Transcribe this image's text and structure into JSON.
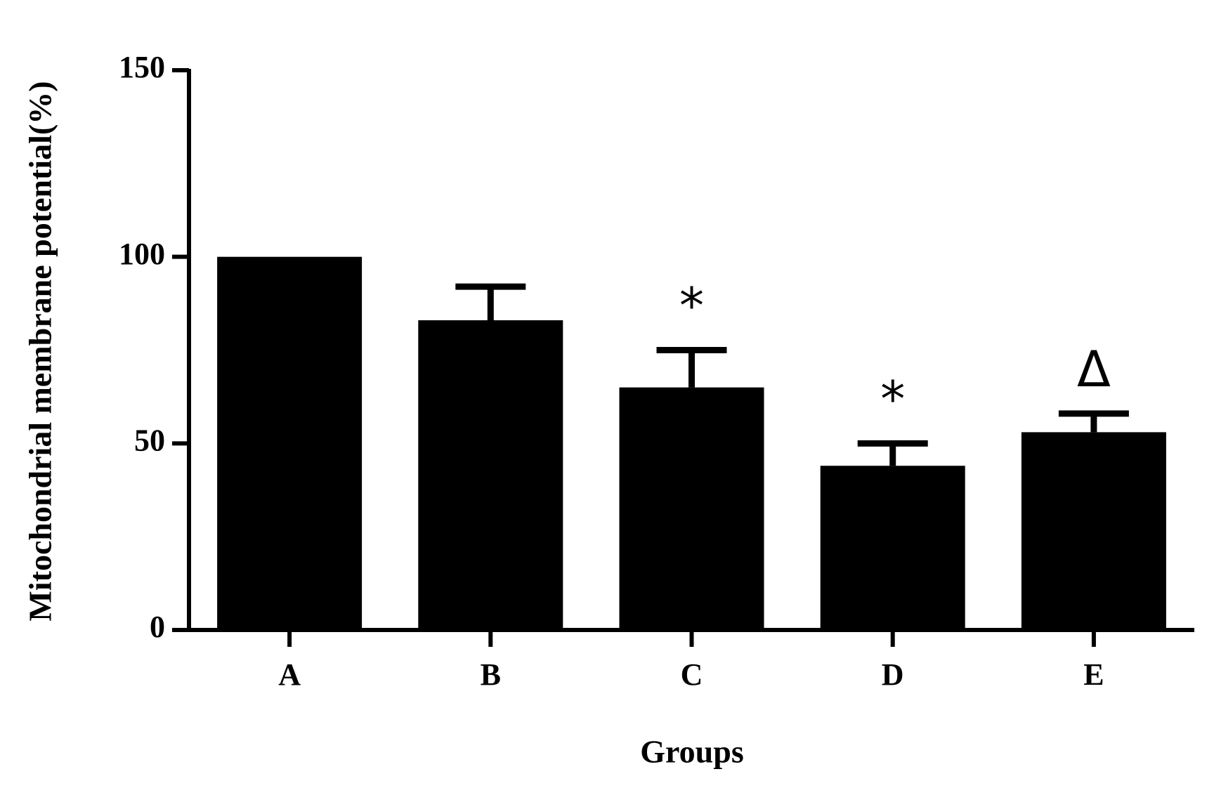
{
  "chart_data": {
    "type": "bar",
    "y_label": "Mitochondrial membrane potential(%)",
    "x_label": "Groups",
    "categories": [
      "A",
      "B",
      "C",
      "D",
      "E"
    ],
    "values": [
      100,
      83,
      65,
      44,
      53
    ],
    "errors": [
      null,
      9,
      10,
      6,
      5
    ],
    "significance": [
      null,
      null,
      "*",
      "*",
      "Δ"
    ],
    "color": "#000000",
    "ylim": [
      0,
      150
    ],
    "yticks": [
      0,
      50,
      100,
      150
    ],
    "grid": false
  }
}
